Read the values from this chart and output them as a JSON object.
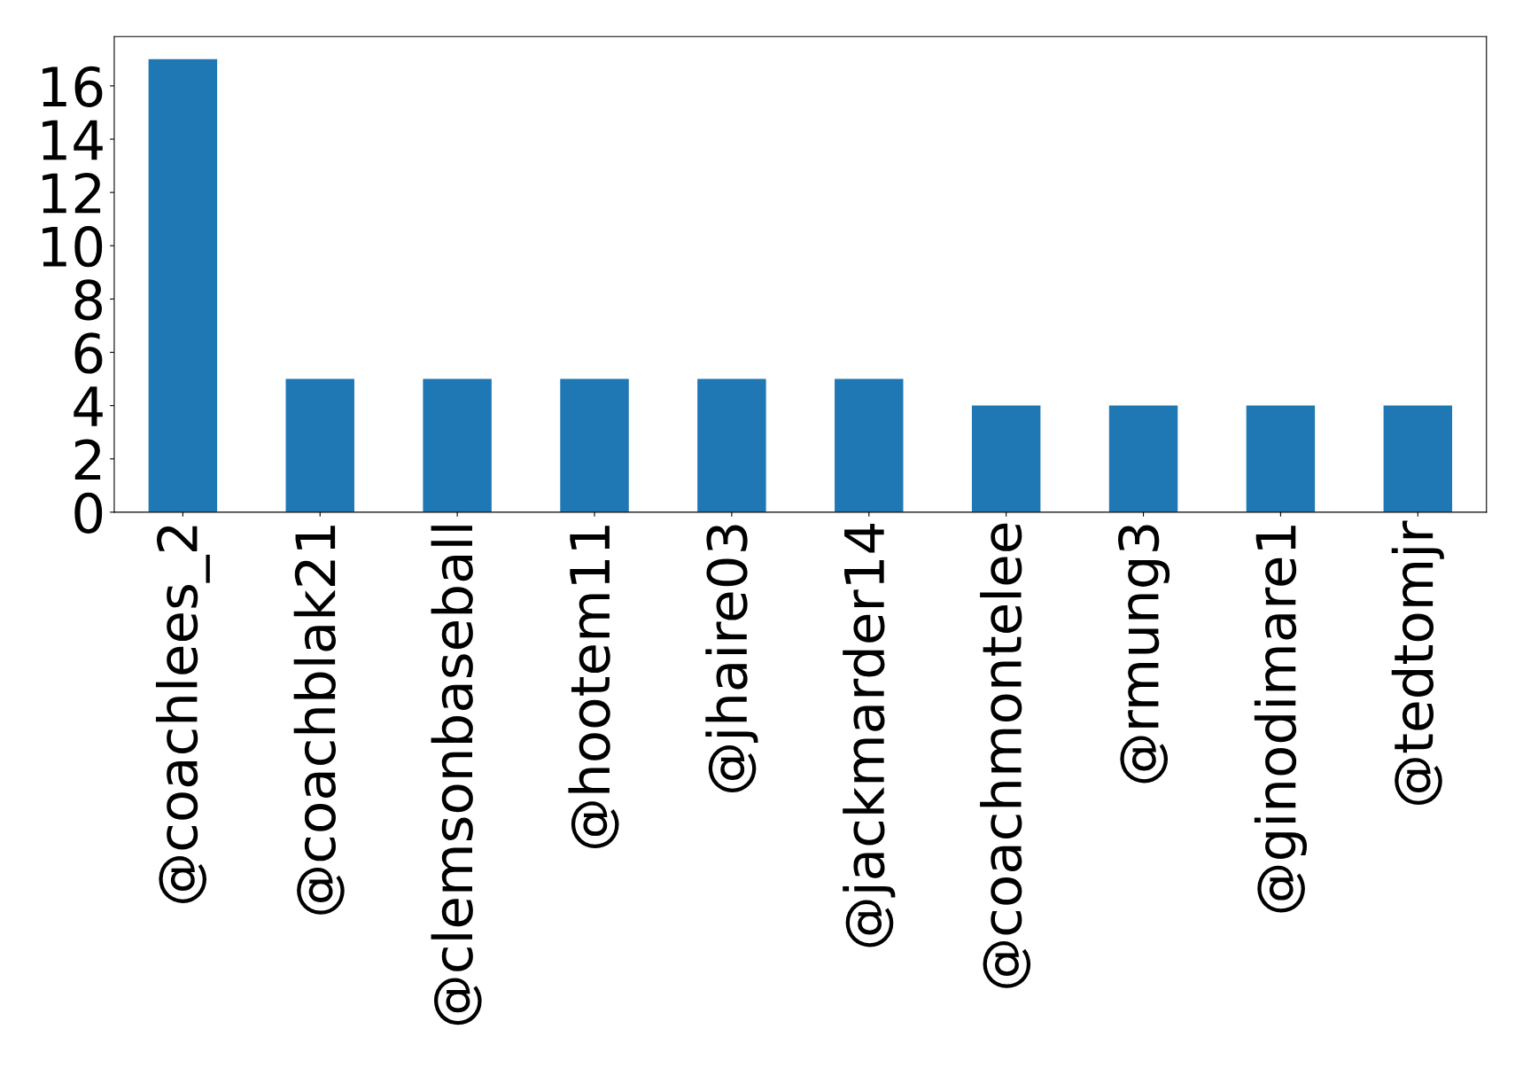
{
  "chart_data": {
    "type": "bar",
    "categories": [
      "@coachlees_2",
      "@coachblak21",
      "@clemsonbaseball",
      "@hootem11",
      "@jhaire03",
      "@jackmarder14",
      "@coachmontelee",
      "@rmung3",
      "@ginodimare1",
      "@tedtomjr"
    ],
    "values": [
      17,
      5,
      5,
      5,
      5,
      5,
      4,
      4,
      4,
      4
    ],
    "color": "#1f77b4",
    "ylim": [
      0,
      17.85
    ],
    "yticks": [
      0,
      2,
      4,
      6,
      8,
      10,
      12,
      14,
      16
    ],
    "grid": false
  }
}
